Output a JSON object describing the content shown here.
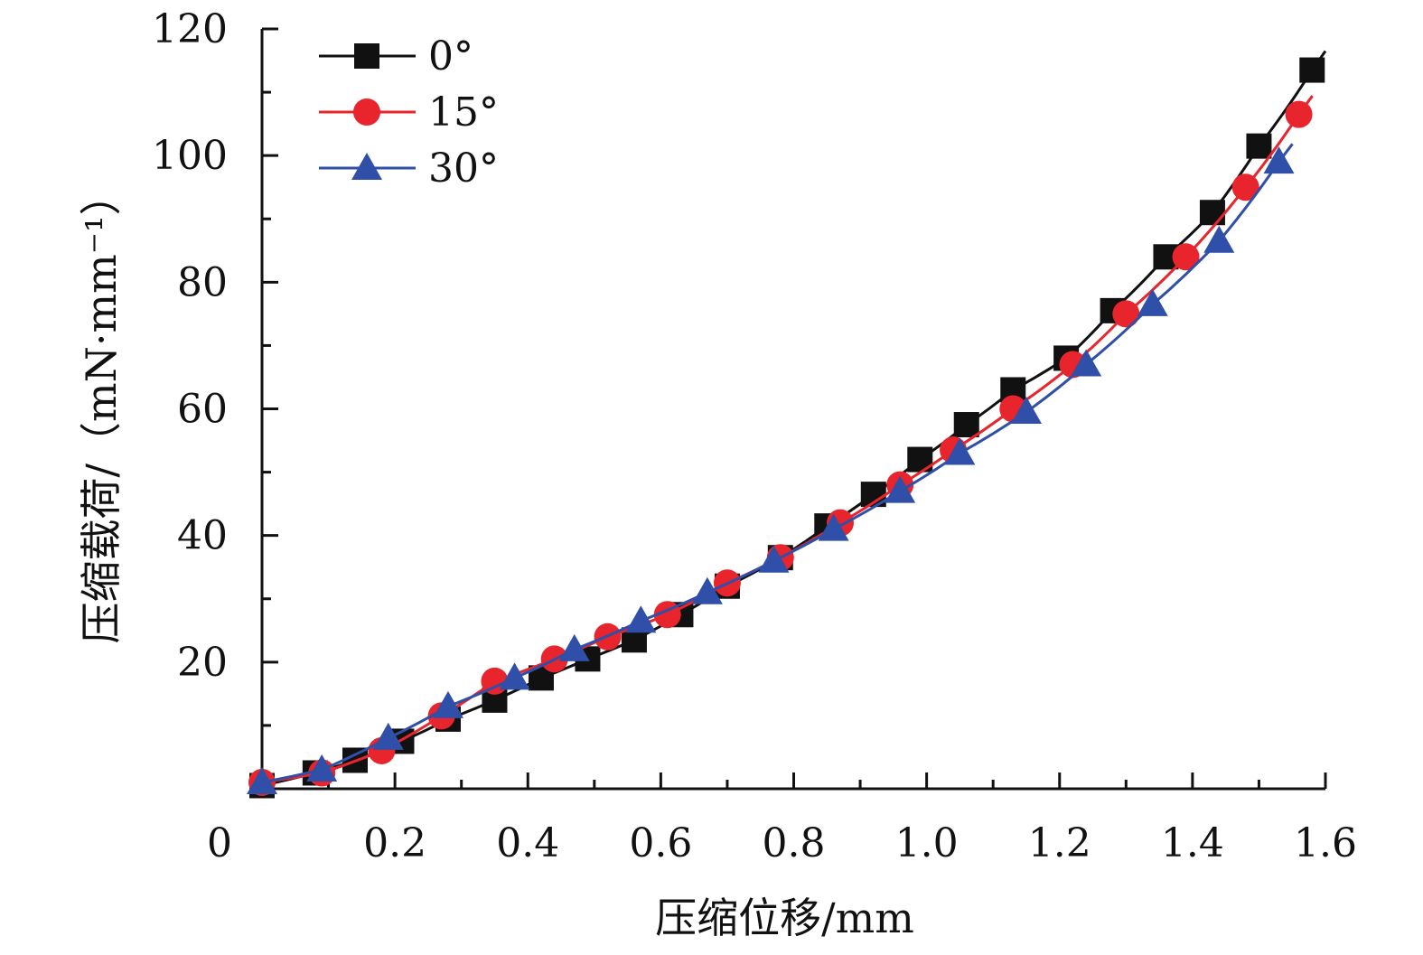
{
  "chart_data": {
    "type": "line",
    "xlabel": "压缩位移/mm",
    "ylabel": "压缩载荷/（mN·mm⁻¹）",
    "xlim": [
      0,
      1.6
    ],
    "ylim": [
      0,
      120
    ],
    "x_ticks": [
      0.2,
      0.4,
      0.6,
      0.8,
      1.0,
      1.2,
      1.4,
      1.6
    ],
    "x_tick_labels": [
      "0.2",
      "0.4",
      "0.6",
      "0.8",
      "1.0",
      "1.2",
      "1.4",
      "1.6"
    ],
    "y_ticks": [
      20,
      40,
      60,
      80,
      100,
      120
    ],
    "y_tick_labels": [
      "20",
      "40",
      "60",
      "80",
      "100",
      "120"
    ],
    "origin_label": "0",
    "grid": false,
    "legend_position": "top-left",
    "series": [
      {
        "name": "0°",
        "color": "#111111",
        "marker": "square",
        "x": [
          0.0,
          0.08,
          0.14,
          0.21,
          0.28,
          0.35,
          0.42,
          0.49,
          0.56,
          0.63,
          0.7,
          0.78,
          0.85,
          0.92,
          0.99,
          1.06,
          1.13,
          1.21,
          1.28,
          1.36,
          1.43,
          1.5,
          1.58
        ],
        "y": [
          0.5,
          2.5,
          4.5,
          7.5,
          11.0,
          14.0,
          17.5,
          20.5,
          23.5,
          27.5,
          32.0,
          36.5,
          41.5,
          46.5,
          52.0,
          57.5,
          63.0,
          68.0,
          75.5,
          84.0,
          91.0,
          101.5,
          113.5
        ]
      },
      {
        "name": "15°",
        "color": "#e8242c",
        "marker": "circle",
        "x": [
          0.0,
          0.09,
          0.18,
          0.27,
          0.35,
          0.44,
          0.52,
          0.61,
          0.7,
          0.78,
          0.87,
          0.96,
          1.04,
          1.13,
          1.22,
          1.3,
          1.39,
          1.48,
          1.56
        ],
        "y": [
          1.0,
          2.5,
          6.0,
          11.5,
          17.0,
          20.5,
          24.0,
          27.5,
          32.5,
          36.5,
          42.0,
          48.0,
          53.5,
          60.0,
          67.0,
          75.0,
          84.0,
          95.0,
          106.5
        ]
      },
      {
        "name": "30°",
        "color": "#2f4fa8",
        "marker": "triangle",
        "x": [
          0.0,
          0.09,
          0.19,
          0.28,
          0.38,
          0.47,
          0.57,
          0.67,
          0.77,
          0.86,
          0.96,
          1.05,
          1.15,
          1.24,
          1.34,
          1.44,
          1.53
        ],
        "y": [
          1.0,
          3.0,
          8.0,
          13.0,
          17.5,
          22.0,
          26.5,
          31.0,
          36.0,
          41.0,
          47.0,
          53.0,
          59.5,
          67.0,
          76.5,
          86.5,
          99.0
        ]
      }
    ]
  }
}
